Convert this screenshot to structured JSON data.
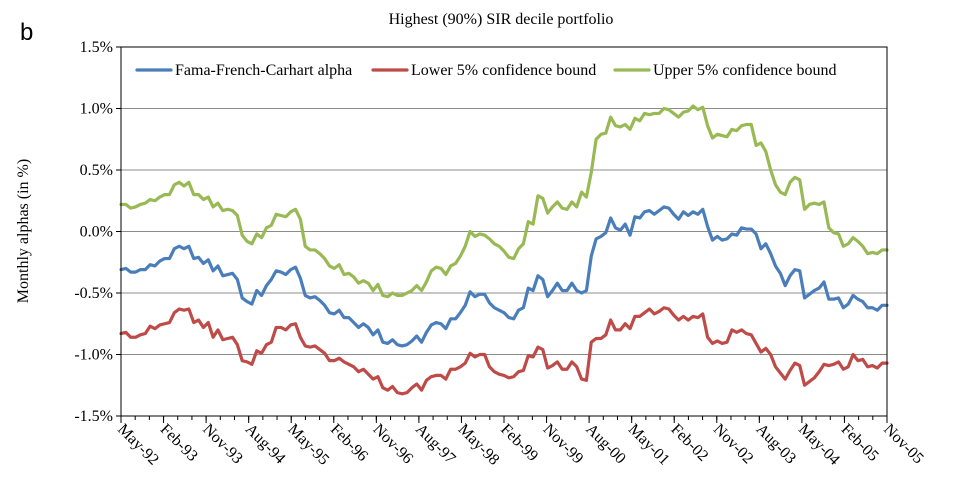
{
  "chart_data": {
    "type": "line",
    "panel_label": "b",
    "title": "Highest (90%) SIR decile portfolio",
    "xlabel": "",
    "ylabel": "Monthly  alphas (in %)",
    "ylim": [
      -1.5,
      1.5
    ],
    "y_ticks": [
      -1.5,
      -1.0,
      -0.5,
      0.0,
      0.5,
      1.0,
      1.5
    ],
    "y_tick_labels": [
      "-1.5%",
      "-1.0%",
      "-0.5%",
      "0.0%",
      "0.5%",
      "1.0%",
      "1.5%"
    ],
    "x_tick_labels": [
      "May-92",
      "Feb-93",
      "Nov-93",
      "Aug-94",
      "May-95",
      "Feb-96",
      "Nov-96",
      "Aug-97",
      "May-98",
      "Feb-99",
      "Nov-99",
      "Aug-00",
      "May-01",
      "Feb-02",
      "Nov-02",
      "Aug-03",
      "May-04",
      "Feb-05",
      "Nov-05"
    ],
    "x_start": "1992-05",
    "x_end": "2005-11",
    "grid": "horizontal",
    "legend_position": "top",
    "series": [
      {
        "name": "Fama-French-Carhart alpha",
        "color": "#4a7ebb",
        "values": [
          -0.31,
          -0.3,
          -0.33,
          -0.33,
          -0.31,
          -0.31,
          -0.27,
          -0.28,
          -0.24,
          -0.22,
          -0.22,
          -0.14,
          -0.12,
          -0.14,
          -0.12,
          -0.22,
          -0.21,
          -0.26,
          -0.23,
          -0.32,
          -0.28,
          -0.36,
          -0.35,
          -0.34,
          -0.39,
          -0.54,
          -0.57,
          -0.59,
          -0.48,
          -0.52,
          -0.44,
          -0.39,
          -0.32,
          -0.33,
          -0.35,
          -0.31,
          -0.29,
          -0.38,
          -0.52,
          -0.54,
          -0.53,
          -0.56,
          -0.6,
          -0.66,
          -0.67,
          -0.64,
          -0.7,
          -0.7,
          -0.74,
          -0.78,
          -0.75,
          -0.78,
          -0.84,
          -0.8,
          -0.9,
          -0.91,
          -0.88,
          -0.92,
          -0.93,
          -0.92,
          -0.89,
          -0.85,
          -0.9,
          -0.82,
          -0.76,
          -0.74,
          -0.75,
          -0.79,
          -0.71,
          -0.71,
          -0.66,
          -0.6,
          -0.49,
          -0.53,
          -0.51,
          -0.51,
          -0.58,
          -0.62,
          -0.64,
          -0.66,
          -0.7,
          -0.71,
          -0.64,
          -0.62,
          -0.46,
          -0.48,
          -0.36,
          -0.39,
          -0.53,
          -0.48,
          -0.42,
          -0.48,
          -0.48,
          -0.42,
          -0.48,
          -0.5,
          -0.48,
          -0.2,
          -0.06,
          -0.04,
          -0.01,
          0.11,
          0.03,
          0.01,
          0.06,
          -0.03,
          0.12,
          0.11,
          0.16,
          0.17,
          0.14,
          0.17,
          0.2,
          0.19,
          0.14,
          0.1,
          0.16,
          0.13,
          0.16,
          0.14,
          0.18,
          0.04,
          -0.07,
          -0.04,
          -0.07,
          -0.06,
          -0.02,
          -0.03,
          0.03,
          0.02,
          0.02,
          -0.02,
          -0.14,
          -0.1,
          -0.18,
          -0.28,
          -0.34,
          -0.44,
          -0.36,
          -0.31,
          -0.32,
          -0.54,
          -0.51,
          -0.48,
          -0.46,
          -0.41,
          -0.55,
          -0.55,
          -0.54,
          -0.62,
          -0.59,
          -0.52,
          -0.55,
          -0.57,
          -0.62,
          -0.62,
          -0.64,
          -0.6,
          -0.6
        ]
      },
      {
        "name": "Lower 5% confidence bound",
        "color": "#be4b48",
        "values": [
          -0.83,
          -0.82,
          -0.86,
          -0.86,
          -0.84,
          -0.83,
          -0.77,
          -0.79,
          -0.76,
          -0.75,
          -0.74,
          -0.66,
          -0.63,
          -0.64,
          -0.63,
          -0.74,
          -0.72,
          -0.78,
          -0.74,
          -0.86,
          -0.8,
          -0.88,
          -0.87,
          -0.86,
          -0.92,
          -1.05,
          -1.06,
          -1.08,
          -0.97,
          -0.99,
          -0.92,
          -0.9,
          -0.78,
          -0.78,
          -0.8,
          -0.76,
          -0.75,
          -0.86,
          -0.93,
          -0.94,
          -0.93,
          -0.96,
          -0.99,
          -1.05,
          -1.05,
          -1.03,
          -1.06,
          -1.08,
          -1.1,
          -1.14,
          -1.12,
          -1.16,
          -1.2,
          -1.18,
          -1.27,
          -1.29,
          -1.26,
          -1.31,
          -1.32,
          -1.31,
          -1.27,
          -1.24,
          -1.29,
          -1.21,
          -1.18,
          -1.17,
          -1.17,
          -1.2,
          -1.12,
          -1.12,
          -1.1,
          -1.07,
          -0.99,
          -1.02,
          -1.0,
          -1.0,
          -1.1,
          -1.14,
          -1.16,
          -1.17,
          -1.19,
          -1.18,
          -1.14,
          -1.13,
          -1.01,
          -1.02,
          -0.94,
          -0.96,
          -1.11,
          -1.09,
          -1.06,
          -1.12,
          -1.12,
          -1.06,
          -1.1,
          -1.2,
          -1.21,
          -0.9,
          -0.87,
          -0.87,
          -0.84,
          -0.72,
          -0.8,
          -0.8,
          -0.75,
          -0.79,
          -0.69,
          -0.69,
          -0.66,
          -0.63,
          -0.67,
          -0.65,
          -0.62,
          -0.63,
          -0.68,
          -0.72,
          -0.69,
          -0.72,
          -0.69,
          -0.7,
          -0.67,
          -0.86,
          -0.91,
          -0.89,
          -0.91,
          -0.9,
          -0.8,
          -0.82,
          -0.8,
          -0.83,
          -0.84,
          -0.91,
          -0.98,
          -0.95,
          -1.0,
          -1.1,
          -1.15,
          -1.2,
          -1.13,
          -1.07,
          -1.09,
          -1.25,
          -1.22,
          -1.19,
          -1.14,
          -1.08,
          -1.09,
          -1.08,
          -1.06,
          -1.12,
          -1.1,
          -1.0,
          -1.05,
          -1.04,
          -1.1,
          -1.09,
          -1.11,
          -1.07,
          -1.07
        ]
      },
      {
        "name": "Upper 5% confidence bound",
        "color": "#98b954",
        "values": [
          0.22,
          0.22,
          0.19,
          0.2,
          0.22,
          0.23,
          0.26,
          0.25,
          0.28,
          0.3,
          0.3,
          0.38,
          0.4,
          0.37,
          0.4,
          0.3,
          0.3,
          0.26,
          0.28,
          0.2,
          0.23,
          0.17,
          0.18,
          0.17,
          0.13,
          -0.03,
          -0.08,
          -0.1,
          -0.02,
          -0.05,
          0.03,
          0.05,
          0.14,
          0.13,
          0.12,
          0.16,
          0.18,
          0.1,
          -0.12,
          -0.15,
          -0.15,
          -0.18,
          -0.22,
          -0.28,
          -0.3,
          -0.27,
          -0.35,
          -0.34,
          -0.37,
          -0.42,
          -0.4,
          -0.42,
          -0.48,
          -0.43,
          -0.52,
          -0.53,
          -0.5,
          -0.52,
          -0.52,
          -0.5,
          -0.48,
          -0.44,
          -0.48,
          -0.41,
          -0.32,
          -0.29,
          -0.3,
          -0.35,
          -0.28,
          -0.26,
          -0.2,
          -0.12,
          0.0,
          -0.04,
          -0.02,
          -0.03,
          -0.06,
          -0.1,
          -0.12,
          -0.16,
          -0.21,
          -0.22,
          -0.14,
          -0.1,
          0.08,
          0.06,
          0.29,
          0.27,
          0.15,
          0.2,
          0.24,
          0.19,
          0.18,
          0.24,
          0.2,
          0.32,
          0.28,
          0.48,
          0.75,
          0.79,
          0.8,
          0.93,
          0.86,
          0.85,
          0.87,
          0.83,
          0.92,
          0.9,
          0.96,
          0.95,
          0.96,
          0.96,
          1.0,
          0.99,
          0.96,
          0.93,
          0.97,
          0.98,
          1.02,
          0.99,
          1.01,
          0.86,
          0.76,
          0.79,
          0.78,
          0.77,
          0.83,
          0.82,
          0.86,
          0.87,
          0.87,
          0.7,
          0.72,
          0.65,
          0.5,
          0.38,
          0.32,
          0.3,
          0.4,
          0.44,
          0.42,
          0.18,
          0.22,
          0.23,
          0.22,
          0.24,
          0.03,
          -0.01,
          -0.02,
          -0.12,
          -0.1,
          -0.05,
          -0.08,
          -0.12,
          -0.18,
          -0.17,
          -0.18,
          -0.15,
          -0.15
        ]
      }
    ]
  }
}
